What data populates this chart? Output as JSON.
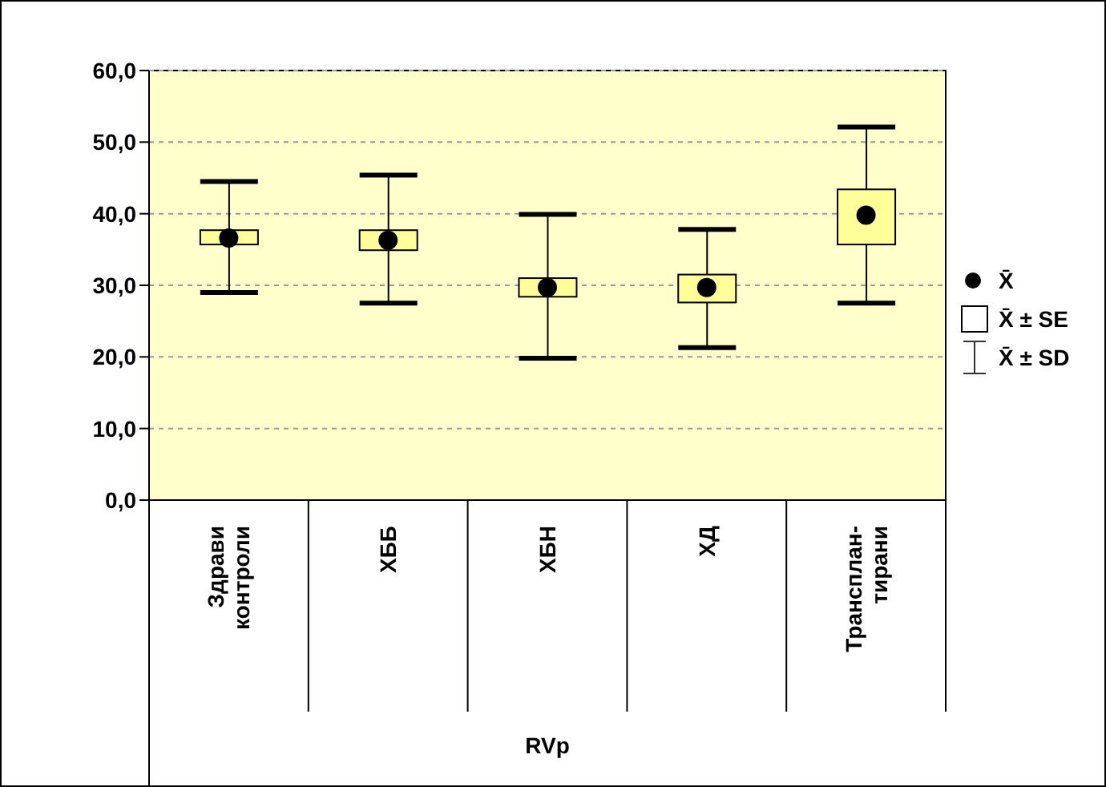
{
  "chart_data": {
    "type": "box",
    "xlabel": "RVp",
    "categories": [
      "Здрави\nконтроли",
      "ХББ",
      "ХБН",
      "ХД",
      "Трансплан-\nтирани"
    ],
    "boxes": [
      {
        "low": 29.0,
        "q1": 35.7,
        "q3": 37.7,
        "high": 44.5,
        "mean": 36.6
      },
      {
        "low": 27.5,
        "q1": 34.9,
        "q3": 37.7,
        "high": 45.4,
        "mean": 36.3
      },
      {
        "low": 19.8,
        "q1": 28.4,
        "q3": 31.0,
        "high": 39.9,
        "mean": 29.7
      },
      {
        "low": 21.3,
        "q1": 27.6,
        "q3": 31.5,
        "high": 37.8,
        "mean": 29.7
      },
      {
        "low": 27.5,
        "q1": 35.7,
        "q3": 43.4,
        "high": 52.1,
        "mean": 39.8
      }
    ],
    "color": "#ffff99",
    "ylim": [
      0,
      60
    ],
    "yticks": [
      {
        "value": 0,
        "label": "0,0"
      },
      {
        "value": 10,
        "label": "10,0"
      },
      {
        "value": 20,
        "label": "20,0"
      },
      {
        "value": 30,
        "label": "30,0"
      },
      {
        "value": 40,
        "label": "40,0"
      },
      {
        "value": 50,
        "label": "50,0"
      },
      {
        "value": 60,
        "label": "60,0"
      }
    ],
    "grid": "y",
    "annotations": [
      "X̄",
      "X̄ ± SE",
      "X̄ ± SD"
    ]
  }
}
